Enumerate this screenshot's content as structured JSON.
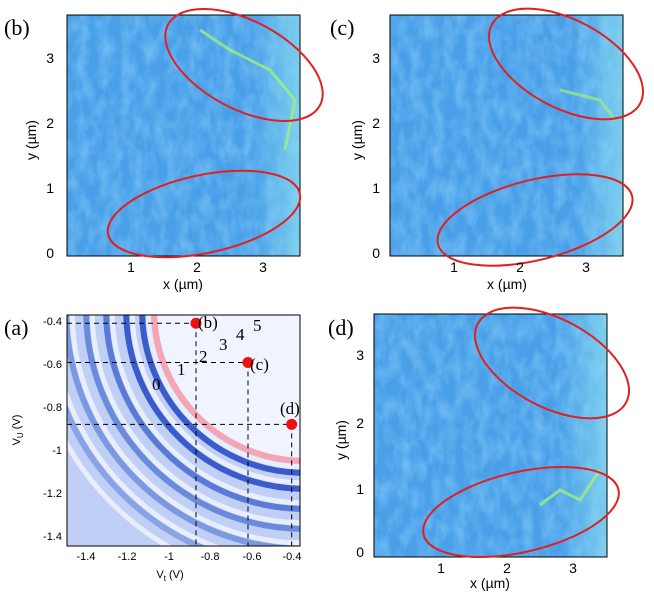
{
  "panels": {
    "b": {
      "label": "(b)",
      "xlabel": "x (µm)",
      "ylabel": "y (µm)",
      "xticks": [
        "1",
        "2",
        "3"
      ],
      "yticks": [
        "0",
        "1",
        "2",
        "3"
      ]
    },
    "c": {
      "label": "(c)",
      "xlabel": "x (µm)",
      "ylabel": "y (µm)",
      "xticks": [
        "1",
        "2",
        "3"
      ],
      "yticks": [
        "0",
        "1",
        "2",
        "3"
      ]
    },
    "d": {
      "label": "(d)",
      "xlabel": "x (µm)",
      "ylabel": "y (µm)",
      "xticks": [
        "1",
        "2",
        "3"
      ],
      "yticks": [
        "0",
        "1",
        "2",
        "3"
      ]
    },
    "a": {
      "label": "(a)",
      "xlabel": "V",
      "xlabel_sub": "t",
      "xlabel_unit": " (V)",
      "ylabel": "V",
      "ylabel_sub": "U",
      "ylabel_unit": " (V)",
      "xticks": [
        "-1.4",
        "-1.2",
        "-1",
        "-0.8",
        "-0.6",
        "-0.4"
      ],
      "yticks": [
        "-0.4",
        "-0.6",
        "-0.8",
        "-1",
        "-1.2",
        "-1.4"
      ],
      "fringe_labels": [
        "0",
        "1",
        "2",
        "3",
        "4",
        "5"
      ],
      "point_labels": [
        "(b)",
        "(c)",
        "(d)"
      ]
    }
  },
  "chart_data": {
    "type": "scatter",
    "title": "",
    "xlabel": "Vt (V)",
    "ylabel": "VU (V)",
    "xlim": [
      -1.5,
      -0.38
    ],
    "ylim": [
      -1.5,
      -0.38
    ],
    "points": [
      {
        "name": "(b)",
        "x": -0.88,
        "y": -0.42
      },
      {
        "name": "(c)",
        "x": -0.63,
        "y": -0.61
      },
      {
        "name": "(d)",
        "x": -0.42,
        "y": -0.91
      }
    ]
  },
  "colors": {
    "ellipse": "#e02020",
    "marker": "#ee1111",
    "map_bg": "#4aa0e8",
    "region0": "#c0cff5"
  }
}
